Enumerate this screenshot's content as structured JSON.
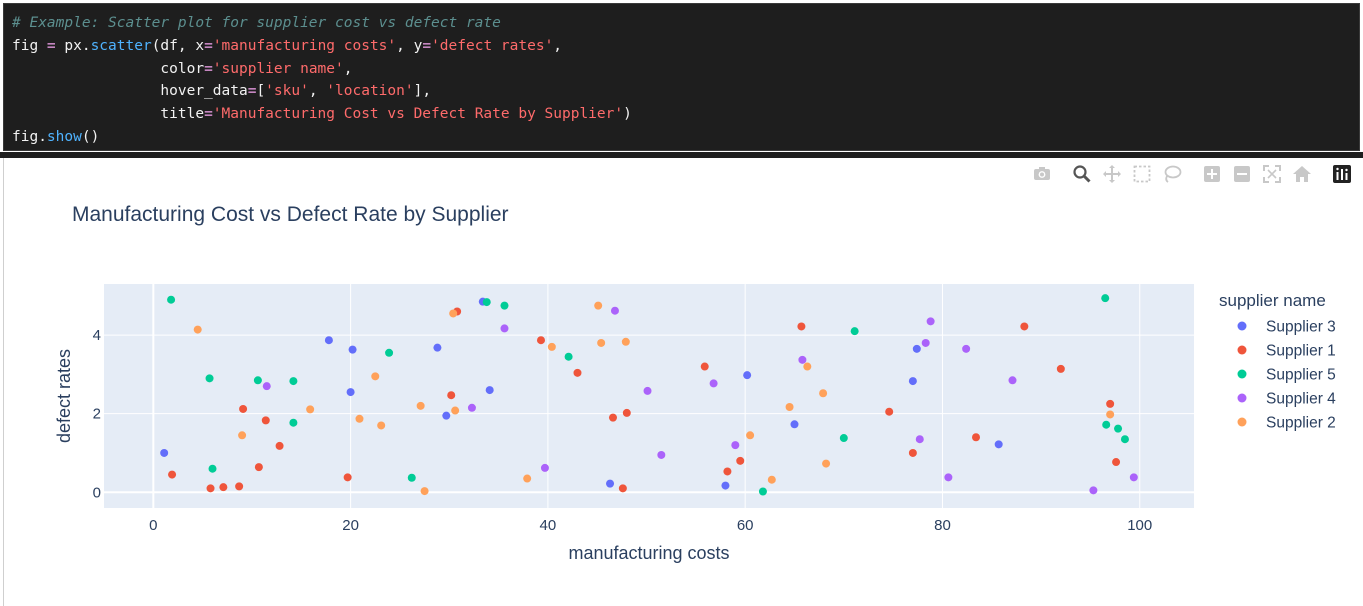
{
  "code": {
    "comment": "# Example: Scatter plot for supplier cost vs defect rate",
    "lines": [
      [
        {
          "t": "plain",
          "v": "fig "
        },
        {
          "t": "op",
          "v": "="
        },
        {
          "t": "plain",
          "v": " px."
        },
        {
          "t": "fn",
          "v": "scatter"
        },
        {
          "t": "plain",
          "v": "(df, x"
        },
        {
          "t": "op",
          "v": "="
        },
        {
          "t": "str",
          "v": "'manufacturing costs'"
        },
        {
          "t": "plain",
          "v": ", y"
        },
        {
          "t": "op",
          "v": "="
        },
        {
          "t": "str",
          "v": "'defect rates'"
        },
        {
          "t": "plain",
          "v": ","
        }
      ],
      [
        {
          "t": "plain",
          "v": "                 color"
        },
        {
          "t": "op",
          "v": "="
        },
        {
          "t": "str",
          "v": "'supplier name'"
        },
        {
          "t": "plain",
          "v": ","
        }
      ],
      [
        {
          "t": "plain",
          "v": "                 hover_data"
        },
        {
          "t": "op",
          "v": "="
        },
        {
          "t": "plain",
          "v": "["
        },
        {
          "t": "str",
          "v": "'sku'"
        },
        {
          "t": "plain",
          "v": ", "
        },
        {
          "t": "str",
          "v": "'location'"
        },
        {
          "t": "plain",
          "v": "],"
        }
      ],
      [
        {
          "t": "plain",
          "v": "                 title"
        },
        {
          "t": "op",
          "v": "="
        },
        {
          "t": "str",
          "v": "'Manufacturing Cost vs Defect Rate by Supplier'"
        },
        {
          "t": "plain",
          "v": ")"
        }
      ],
      [
        {
          "t": "plain",
          "v": "fig."
        },
        {
          "t": "fn",
          "v": "show"
        },
        {
          "t": "plain",
          "v": "()"
        }
      ]
    ]
  },
  "modebar": {
    "buttons": [
      "camera-icon",
      "zoom-icon",
      "pan-icon",
      "box-select-icon",
      "lasso-select-icon",
      "zoom-in-icon",
      "zoom-out-icon",
      "autoscale-icon",
      "reset-axes-icon",
      "plotly-logo-icon"
    ]
  },
  "chart_data": {
    "type": "scatter",
    "title": "Manufacturing Cost vs Defect Rate by Supplier",
    "xlabel": "manufacturing costs",
    "ylabel": "defect rates",
    "xlim": [
      -5,
      105.5
    ],
    "ylim": [
      -0.4,
      5.3
    ],
    "xticks": [
      0,
      20,
      40,
      60,
      80,
      100
    ],
    "yticks": [
      0,
      2,
      4
    ],
    "grid": true,
    "legend_title": "supplier name",
    "legend_position": "right",
    "series": [
      {
        "name": "Supplier 3",
        "color": "#636efa",
        "points": [
          [
            1.1,
            1.0
          ],
          [
            17.8,
            3.87
          ],
          [
            20.0,
            2.55
          ],
          [
            20.2,
            3.63
          ],
          [
            28.8,
            3.68
          ],
          [
            29.7,
            1.95
          ],
          [
            33.4,
            4.85
          ],
          [
            34.1,
            2.6
          ],
          [
            46.3,
            0.22
          ],
          [
            58.0,
            0.17
          ],
          [
            60.2,
            2.98
          ],
          [
            65.0,
            1.73
          ],
          [
            77.0,
            2.83
          ],
          [
            77.4,
            3.65
          ],
          [
            85.7,
            1.22
          ]
        ]
      },
      {
        "name": "Supplier 1",
        "color": "#EF553B",
        "points": [
          [
            1.9,
            0.45
          ],
          [
            5.8,
            0.1
          ],
          [
            7.1,
            0.13
          ],
          [
            8.7,
            0.15
          ],
          [
            9.1,
            2.12
          ],
          [
            10.7,
            0.64
          ],
          [
            11.4,
            1.83
          ],
          [
            12.8,
            1.18
          ],
          [
            19.7,
            0.38
          ],
          [
            30.2,
            2.47
          ],
          [
            30.8,
            4.6
          ],
          [
            39.3,
            3.87
          ],
          [
            43.0,
            3.04
          ],
          [
            46.6,
            1.9
          ],
          [
            47.6,
            0.1
          ],
          [
            48.0,
            2.02
          ],
          [
            55.9,
            3.2
          ],
          [
            58.2,
            0.53
          ],
          [
            59.5,
            0.8
          ],
          [
            65.7,
            4.22
          ],
          [
            74.6,
            2.05
          ],
          [
            77.0,
            1.0
          ],
          [
            83.4,
            1.4
          ],
          [
            88.3,
            4.22
          ],
          [
            92.0,
            3.14
          ],
          [
            97.0,
            2.25
          ],
          [
            97.6,
            0.77
          ]
        ]
      },
      {
        "name": "Supplier 5",
        "color": "#00cc96",
        "points": [
          [
            1.8,
            4.9
          ],
          [
            5.7,
            2.9
          ],
          [
            6.0,
            0.6
          ],
          [
            10.6,
            2.85
          ],
          [
            14.2,
            1.77
          ],
          [
            14.2,
            2.83
          ],
          [
            23.9,
            3.55
          ],
          [
            26.2,
            0.37
          ],
          [
            33.8,
            4.84
          ],
          [
            35.6,
            4.75
          ],
          [
            42.1,
            3.45
          ],
          [
            61.8,
            0.02
          ],
          [
            70.0,
            1.38
          ],
          [
            71.1,
            4.1
          ],
          [
            96.5,
            4.94
          ],
          [
            96.6,
            1.72
          ],
          [
            97.8,
            1.62
          ],
          [
            98.5,
            1.35
          ]
        ]
      },
      {
        "name": "Supplier 4",
        "color": "#ab63fa",
        "points": [
          [
            11.5,
            2.7
          ],
          [
            32.3,
            2.15
          ],
          [
            35.6,
            4.17
          ],
          [
            39.7,
            0.62
          ],
          [
            46.8,
            4.62
          ],
          [
            50.1,
            2.58
          ],
          [
            51.5,
            0.95
          ],
          [
            56.8,
            2.77
          ],
          [
            59.0,
            1.2
          ],
          [
            65.8,
            3.37
          ],
          [
            77.7,
            1.35
          ],
          [
            78.3,
            3.8
          ],
          [
            78.8,
            4.35
          ],
          [
            80.6,
            0.38
          ],
          [
            82.4,
            3.65
          ],
          [
            87.1,
            2.85
          ],
          [
            95.3,
            0.05
          ],
          [
            99.4,
            0.38
          ]
        ]
      },
      {
        "name": "Supplier 2",
        "color": "#FFA15A",
        "points": [
          [
            4.5,
            4.14
          ],
          [
            9.0,
            1.45
          ],
          [
            15.9,
            2.11
          ],
          [
            20.9,
            1.87
          ],
          [
            22.5,
            2.95
          ],
          [
            23.1,
            1.7
          ],
          [
            27.1,
            2.2
          ],
          [
            27.5,
            0.03
          ],
          [
            30.4,
            4.55
          ],
          [
            30.6,
            2.08
          ],
          [
            37.9,
            0.35
          ],
          [
            40.4,
            3.7
          ],
          [
            45.1,
            4.75
          ],
          [
            45.4,
            3.8
          ],
          [
            47.9,
            3.83
          ],
          [
            60.5,
            1.45
          ],
          [
            62.7,
            0.32
          ],
          [
            64.5,
            2.17
          ],
          [
            66.3,
            3.2
          ],
          [
            67.9,
            2.52
          ],
          [
            68.2,
            0.73
          ],
          [
            97.0,
            1.98
          ]
        ]
      }
    ]
  }
}
